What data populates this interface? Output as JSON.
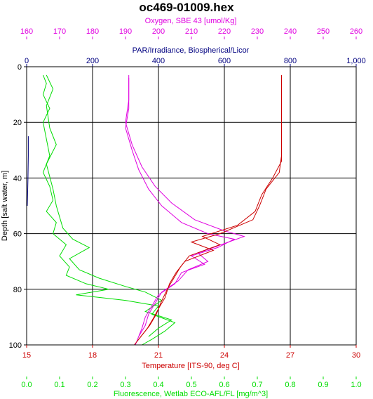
{
  "chart_data": {
    "type": "line",
    "title": "oc469-01009.hex",
    "y_axis": {
      "label": "Depth [salt water, m]",
      "range": [
        0,
        100
      ],
      "inverted": true,
      "ticks": [
        "0",
        "20",
        "40",
        "60",
        "80",
        "100"
      ],
      "tick_values": [
        0,
        20,
        40,
        60,
        80,
        100
      ]
    },
    "x_axes": {
      "oxygen": {
        "label": "Oxygen, SBE 43 [umol/Kg]",
        "color": "#e000e0",
        "position": "top-outer",
        "range": [
          160,
          260
        ],
        "ticks": [
          "160",
          "170",
          "180",
          "190",
          "200",
          "210",
          "220",
          "230",
          "240",
          "250",
          "260"
        ]
      },
      "par": {
        "label": "PAR/Irradiance, Biospherical/Licor",
        "color": "#000080",
        "position": "top-inner",
        "range": [
          0,
          1000
        ],
        "ticks": [
          "0",
          "200",
          "400",
          "600",
          "800",
          "1,000"
        ]
      },
      "temperature": {
        "label": "Temperature [ITS-90, deg C]",
        "color": "#cc0000",
        "position": "bottom-inner",
        "range": [
          15,
          30
        ],
        "ticks": [
          "15",
          "18",
          "21",
          "24",
          "27",
          "30"
        ]
      },
      "fluorescence": {
        "label": "Fluorescence, Wetlab ECO-AFL/FL [mg/m^3]",
        "color": "#00dd00",
        "position": "bottom-outer",
        "range": [
          0,
          1.0
        ],
        "ticks": [
          "0.0",
          "0.1",
          "0.2",
          "0.3",
          "0.4",
          "0.5",
          "0.6",
          "0.7",
          "0.8",
          "0.9",
          "1.0"
        ]
      }
    },
    "grid": true,
    "series": [
      {
        "axis": "fluorescence",
        "color": "#00dd00",
        "points": [
          [
            0.05,
            3
          ],
          [
            0.06,
            6
          ],
          [
            0.05,
            10
          ],
          [
            0.07,
            15
          ],
          [
            0.05,
            20
          ],
          [
            0.06,
            26
          ],
          [
            0.07,
            32
          ],
          [
            0.05,
            38
          ],
          [
            0.07,
            43
          ],
          [
            0.08,
            48
          ],
          [
            0.06,
            52
          ],
          [
            0.09,
            56
          ],
          [
            0.08,
            60
          ],
          [
            0.12,
            64
          ],
          [
            0.1,
            68
          ],
          [
            0.13,
            72
          ],
          [
            0.12,
            75
          ],
          [
            0.18,
            78
          ],
          [
            0.25,
            80
          ],
          [
            0.15,
            82
          ],
          [
            0.3,
            84
          ],
          [
            0.4,
            86
          ],
          [
            0.38,
            89
          ],
          [
            0.45,
            92
          ],
          [
            0.42,
            95
          ],
          [
            0.38,
            98
          ],
          [
            0.35,
            100
          ]
        ]
      },
      {
        "axis": "fluorescence",
        "color": "#00dd00",
        "points": [
          [
            0.06,
            3
          ],
          [
            0.08,
            8
          ],
          [
            0.06,
            14
          ],
          [
            0.07,
            22
          ],
          [
            0.09,
            28
          ],
          [
            0.06,
            35
          ],
          [
            0.08,
            44
          ],
          [
            0.09,
            50
          ],
          [
            0.11,
            58
          ],
          [
            0.14,
            62
          ],
          [
            0.19,
            65
          ],
          [
            0.13,
            69
          ],
          [
            0.16,
            73
          ],
          [
            0.22,
            76
          ],
          [
            0.3,
            79
          ],
          [
            0.36,
            81
          ],
          [
            0.41,
            84
          ],
          [
            0.36,
            88
          ],
          [
            0.44,
            91
          ],
          [
            0.4,
            94
          ],
          [
            0.37,
            97
          ]
        ]
      },
      {
        "axis": "oxygen",
        "color": "#e000e0",
        "points": [
          [
            191,
            3
          ],
          [
            191,
            8
          ],
          [
            191,
            15
          ],
          [
            190,
            22
          ],
          [
            192,
            30
          ],
          [
            194,
            37
          ],
          [
            197,
            44
          ],
          [
            201,
            50
          ],
          [
            207,
            56
          ],
          [
            215,
            60
          ],
          [
            223,
            62
          ],
          [
            218,
            65
          ],
          [
            210,
            68
          ],
          [
            214,
            71
          ],
          [
            207,
            74
          ],
          [
            205,
            78
          ],
          [
            200,
            82
          ],
          [
            198,
            86
          ],
          [
            196,
            90
          ],
          [
            195,
            94
          ],
          [
            194,
            97
          ],
          [
            193,
            100
          ]
        ]
      },
      {
        "axis": "oxygen",
        "color": "#e000e0",
        "points": [
          [
            191,
            4
          ],
          [
            191,
            12
          ],
          [
            190,
            20
          ],
          [
            192,
            28
          ],
          [
            195,
            36
          ],
          [
            199,
            43
          ],
          [
            204,
            49
          ],
          [
            211,
            55
          ],
          [
            220,
            59
          ],
          [
            226,
            61
          ],
          [
            219,
            64
          ],
          [
            212,
            67
          ],
          [
            215,
            70
          ],
          [
            209,
            73
          ],
          [
            206,
            77
          ],
          [
            201,
            81
          ],
          [
            199,
            85
          ],
          [
            197,
            89
          ],
          [
            196,
            93
          ],
          [
            194,
            97
          ]
        ]
      },
      {
        "axis": "temperature",
        "color": "#cc0000",
        "points": [
          [
            26.6,
            3
          ],
          [
            26.6,
            10
          ],
          [
            26.6,
            18
          ],
          [
            26.6,
            25
          ],
          [
            26.6,
            32
          ],
          [
            26.5,
            38
          ],
          [
            25.9,
            44
          ],
          [
            25.6,
            50
          ],
          [
            25.3,
            55
          ],
          [
            23.8,
            60
          ],
          [
            22.5,
            63
          ],
          [
            23.5,
            66
          ],
          [
            22.2,
            70
          ],
          [
            21.8,
            74
          ],
          [
            21.5,
            78
          ],
          [
            21.3,
            83
          ],
          [
            21.0,
            87
          ],
          [
            20.8,
            90
          ],
          [
            20.5,
            94
          ],
          [
            20.2,
            97
          ],
          [
            19.9,
            100
          ]
        ]
      },
      {
        "axis": "temperature",
        "color": "#cc0000",
        "points": [
          [
            26.6,
            4
          ],
          [
            26.6,
            14
          ],
          [
            26.6,
            24
          ],
          [
            26.6,
            34
          ],
          [
            26.2,
            40
          ],
          [
            25.7,
            46
          ],
          [
            25.4,
            52
          ],
          [
            24.6,
            57
          ],
          [
            23.0,
            61
          ],
          [
            23.8,
            64
          ],
          [
            22.4,
            68
          ],
          [
            22.0,
            72
          ],
          [
            21.7,
            76
          ],
          [
            21.4,
            80
          ],
          [
            21.1,
            85
          ],
          [
            20.9,
            89
          ],
          [
            20.6,
            93
          ],
          [
            20.3,
            96
          ],
          [
            20.0,
            99
          ]
        ]
      },
      {
        "axis": "par",
        "color": "#000080",
        "points": [
          [
            5,
            25
          ],
          [
            5,
            32
          ],
          [
            4,
            40
          ],
          [
            3,
            46
          ],
          [
            2,
            50
          ]
        ]
      }
    ]
  }
}
